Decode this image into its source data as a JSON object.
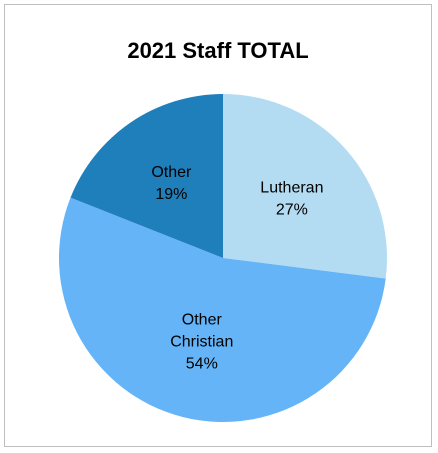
{
  "chart_data": {
    "type": "pie",
    "title": "2021 Staff TOTAL",
    "slices": [
      {
        "category": "Lutheran",
        "percent_label": "27%",
        "value": 27,
        "color": "#b3dcf3"
      },
      {
        "category": "Other Christian",
        "percent_label": "54%",
        "value": 54,
        "color": "#64b4f7"
      },
      {
        "category": "Other",
        "percent_label": "19%",
        "value": 19,
        "color": "#1f7fbb"
      }
    ],
    "legend": "none",
    "start_angle": "12-o-clock, clockwise"
  }
}
